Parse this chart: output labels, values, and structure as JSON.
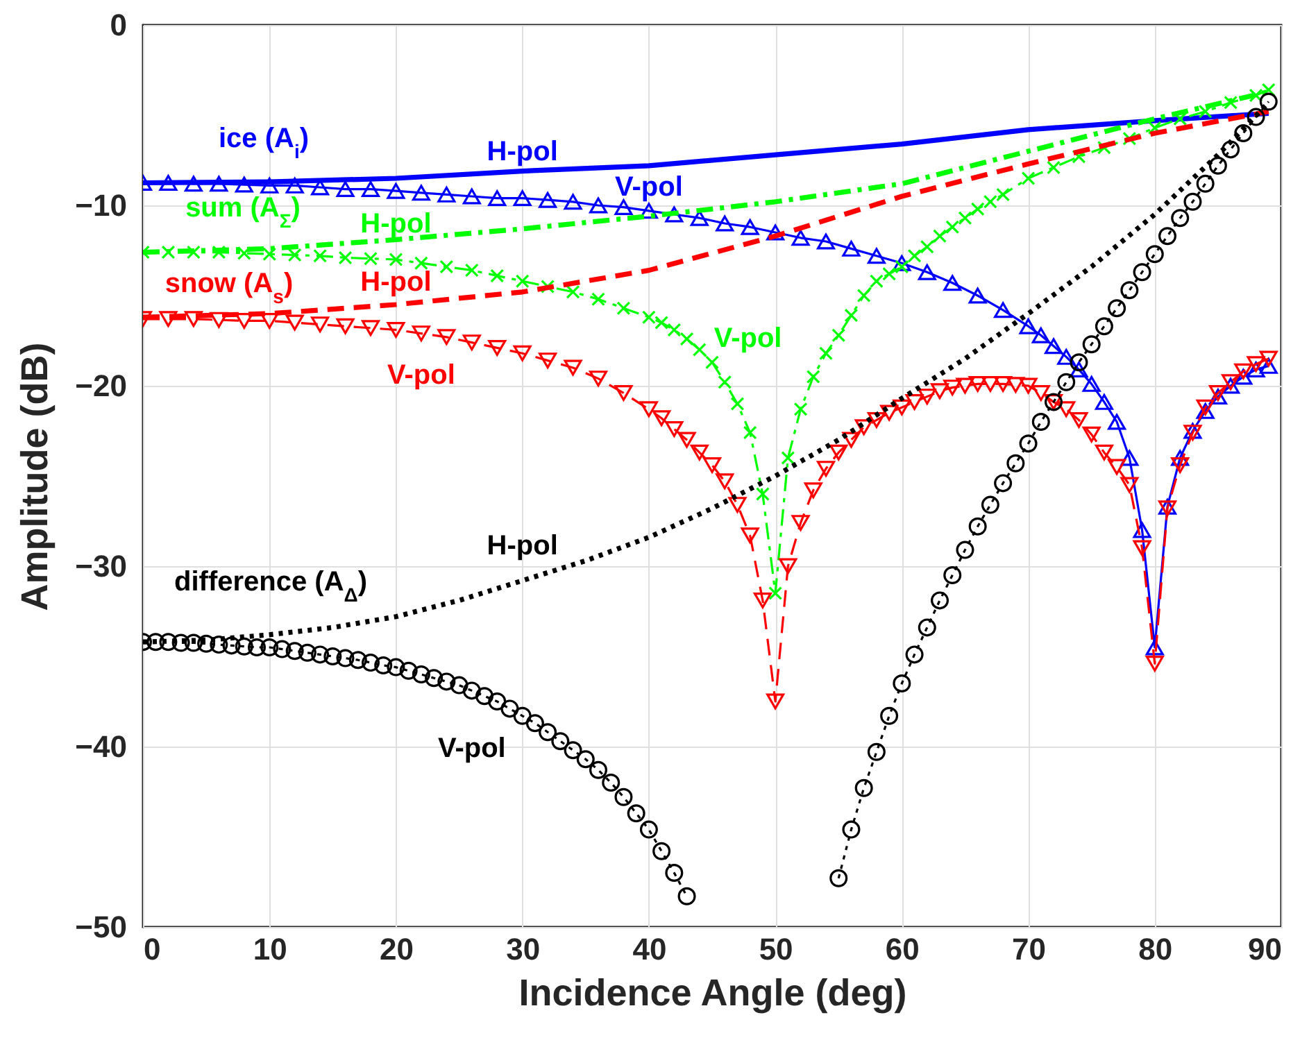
{
  "chart_data": {
    "type": "line",
    "xlabel": "Incidence Angle (deg)",
    "ylabel": "Amplitude (dB)",
    "xlim": [
      0,
      90
    ],
    "ylim": [
      -50,
      0
    ],
    "xticks": [
      0,
      10,
      20,
      30,
      40,
      50,
      60,
      70,
      80,
      90
    ],
    "yticks": [
      -50,
      -40,
      -30,
      -20,
      -10,
      0
    ],
    "grid": true,
    "series": [
      {
        "name": "H-pol",
        "color": "#0000ff",
        "marker": "none",
        "line_style": "solid",
        "x": [
          0,
          10,
          20,
          30,
          40,
          50,
          60,
          70,
          80,
          89
        ],
        "values": [
          -8.75,
          -8.7,
          -8.5,
          -8.1,
          -7.8,
          -7.2,
          -6.6,
          -5.8,
          -5.3,
          -4.9
        ]
      },
      {
        "name": "V-pol",
        "color": "#0000ff",
        "marker": "triangle",
        "line_style": "solid",
        "x": [
          0,
          2,
          4,
          6,
          8,
          10,
          12,
          14,
          16,
          18,
          20,
          22,
          24,
          26,
          28,
          30,
          32,
          34,
          36,
          38,
          40,
          42,
          44,
          46,
          48,
          50,
          52,
          54,
          56,
          58,
          60,
          62,
          64,
          66,
          68,
          70,
          71,
          72,
          73,
          74,
          75,
          76,
          77,
          78,
          79,
          80,
          81,
          82,
          83,
          84,
          85,
          86,
          87,
          88,
          89
        ],
        "values": [
          -8.75,
          -8.75,
          -8.8,
          -8.8,
          -8.85,
          -8.9,
          -8.9,
          -9.0,
          -9.1,
          -9.1,
          -9.2,
          -9.3,
          -9.4,
          -9.5,
          -9.6,
          -9.6,
          -9.7,
          -9.8,
          -10.0,
          -10.1,
          -10.3,
          -10.5,
          -10.7,
          -11.0,
          -11.2,
          -11.5,
          -11.8,
          -12.0,
          -12.4,
          -12.8,
          -13.2,
          -13.7,
          -14.3,
          -15.0,
          -15.8,
          -16.7,
          -17.2,
          -17.8,
          -18.4,
          -19.1,
          -19.9,
          -20.9,
          -22.0,
          -24.0,
          -28.0,
          -34.5,
          -26.7,
          -24.0,
          -22.5,
          -21.4,
          -20.6,
          -20.0,
          -19.5,
          -19.1,
          -18.9
        ]
      },
      {
        "name": "H-pol",
        "color": "#00ff00",
        "marker": "none",
        "line_style": "dashdot",
        "x": [
          0,
          10,
          20,
          30,
          40,
          50,
          60,
          70,
          80,
          89
        ],
        "values": [
          -12.6,
          -12.4,
          -11.9,
          -11.3,
          -10.6,
          -9.8,
          -8.8,
          -7.0,
          -5.2,
          -3.7
        ]
      },
      {
        "name": "V-pol",
        "color": "#00ff00",
        "marker": "cross",
        "line_style": "dashdot",
        "x": [
          0,
          2,
          4,
          6,
          8,
          10,
          12,
          14,
          16,
          18,
          20,
          22,
          24,
          26,
          28,
          30,
          32,
          34,
          36,
          38,
          40,
          41,
          42,
          43,
          44,
          45,
          46,
          47,
          48,
          49,
          50,
          51,
          52,
          53,
          54,
          55,
          56,
          57,
          58,
          59,
          60,
          61,
          62,
          63,
          64,
          65,
          66,
          67,
          68,
          70,
          72,
          74,
          76,
          78,
          80,
          82,
          84,
          86,
          88,
          89
        ],
        "values": [
          -12.6,
          -12.6,
          -12.6,
          -12.6,
          -12.65,
          -12.7,
          -12.75,
          -12.8,
          -12.9,
          -12.95,
          -13.0,
          -13.2,
          -13.4,
          -13.6,
          -13.9,
          -14.2,
          -14.5,
          -14.8,
          -15.2,
          -15.7,
          -16.2,
          -16.5,
          -16.9,
          -17.4,
          -18.0,
          -18.7,
          -19.8,
          -21.0,
          -22.6,
          -26.0,
          -31.5,
          -24.0,
          -21.3,
          -19.5,
          -18.2,
          -17.2,
          -16.1,
          -15.0,
          -14.2,
          -13.8,
          -13.4,
          -12.8,
          -12.3,
          -11.7,
          -11.2,
          -10.7,
          -10.2,
          -9.8,
          -9.4,
          -8.5,
          -7.9,
          -7.3,
          -6.8,
          -6.3,
          -5.7,
          -5.2,
          -4.8,
          -4.3,
          -3.9,
          -3.6
        ]
      },
      {
        "name": "H-pol",
        "color": "#ff0000",
        "marker": "none",
        "line_style": "dashed",
        "x": [
          0,
          10,
          20,
          30,
          40,
          50,
          60,
          70,
          80,
          89
        ],
        "values": [
          -16.2,
          -16.0,
          -15.5,
          -14.8,
          -13.6,
          -11.7,
          -9.5,
          -7.7,
          -6.0,
          -4.8
        ]
      },
      {
        "name": "V-pol",
        "color": "#ff0000",
        "marker": "triangle-down",
        "line_style": "dashed",
        "x": [
          0,
          2,
          4,
          6,
          8,
          10,
          12,
          14,
          16,
          18,
          20,
          22,
          24,
          26,
          28,
          30,
          32,
          34,
          36,
          38,
          40,
          41,
          42,
          43,
          44,
          45,
          46,
          47,
          48,
          49,
          50,
          51,
          52,
          53,
          54,
          55,
          56,
          57,
          58,
          59,
          60,
          61,
          62,
          63,
          64,
          65,
          66,
          67,
          68,
          69,
          70,
          71,
          72,
          73,
          74,
          75,
          76,
          77,
          78,
          79,
          80,
          81,
          82,
          83,
          84,
          85,
          86,
          87,
          88,
          89
        ],
        "values": [
          -16.3,
          -16.3,
          -16.3,
          -16.35,
          -16.4,
          -16.4,
          -16.5,
          -16.6,
          -16.7,
          -16.8,
          -16.9,
          -17.1,
          -17.3,
          -17.6,
          -17.9,
          -18.2,
          -18.6,
          -19.0,
          -19.6,
          -20.4,
          -21.3,
          -21.8,
          -22.4,
          -23.0,
          -23.7,
          -24.4,
          -25.3,
          -26.6,
          -28.3,
          -31.9,
          -37.5,
          -30.0,
          -27.6,
          -25.8,
          -24.6,
          -23.7,
          -23.0,
          -22.3,
          -21.9,
          -21.5,
          -21.2,
          -20.9,
          -20.6,
          -20.3,
          -20.1,
          -20.0,
          -19.9,
          -19.9,
          -19.9,
          -19.95,
          -20.0,
          -20.4,
          -20.9,
          -21.3,
          -21.9,
          -22.7,
          -23.7,
          -24.5,
          -25.5,
          -29.0,
          -35.4,
          -26.8,
          -24.4,
          -22.6,
          -21.2,
          -20.4,
          -19.8,
          -19.2,
          -18.8,
          -18.5
        ]
      },
      {
        "name": "H-pol",
        "color": "#000000",
        "marker": "none",
        "line_style": "dotted",
        "x": [
          0,
          5,
          10,
          15,
          20,
          25,
          30,
          35,
          40,
          45,
          50,
          55,
          60,
          65,
          70,
          75,
          80,
          85,
          89
        ],
        "values": [
          -34.2,
          -34.1,
          -33.8,
          -33.4,
          -32.8,
          -31.9,
          -30.8,
          -29.7,
          -28.4,
          -26.8,
          -25.0,
          -23.0,
          -20.7,
          -18.5,
          -16.0,
          -13.4,
          -10.5,
          -7.2,
          -4.3
        ]
      },
      {
        "name": "V-pol",
        "color": "#000000",
        "marker": "circle",
        "line_style": "dotted",
        "x": [
          0,
          1,
          2,
          3,
          4,
          5,
          6,
          7,
          8,
          9,
          10,
          11,
          12,
          13,
          14,
          15,
          16,
          17,
          18,
          19,
          20,
          21,
          22,
          23,
          24,
          25,
          26,
          27,
          28,
          29,
          30,
          31,
          32,
          33,
          34,
          35,
          36,
          37,
          38,
          39,
          40,
          41,
          42,
          43,
          44,
          54,
          55,
          56,
          57,
          58,
          59,
          60,
          61,
          62,
          63,
          64,
          65,
          66,
          67,
          68,
          69,
          70,
          71,
          72,
          73,
          74,
          75,
          76,
          77,
          78,
          79,
          80,
          81,
          82,
          83,
          84,
          85,
          86,
          87,
          88,
          89
        ],
        "values": [
          -34.2,
          -34.2,
          -34.2,
          -34.25,
          -34.25,
          -34.3,
          -34.35,
          -34.4,
          -34.45,
          -34.5,
          -34.5,
          -34.6,
          -34.7,
          -34.8,
          -34.9,
          -35.0,
          -35.1,
          -35.2,
          -35.35,
          -35.5,
          -35.6,
          -35.8,
          -36.0,
          -36.2,
          -36.4,
          -36.6,
          -36.9,
          -37.2,
          -37.5,
          -37.9,
          -38.3,
          -38.7,
          -39.2,
          -39.7,
          -40.2,
          -40.7,
          -41.3,
          -42.0,
          -42.8,
          -43.7,
          -44.6,
          -45.8,
          -47.0,
          -48.3,
          null,
          null,
          -47.3,
          -44.6,
          -42.3,
          -40.3,
          -38.3,
          -36.5,
          -34.9,
          -33.4,
          -31.9,
          -30.5,
          -29.1,
          -27.8,
          -26.6,
          -25.4,
          -24.3,
          -23.2,
          -22.0,
          -20.9,
          -19.8,
          -18.7,
          -17.7,
          -16.7,
          -15.7,
          -14.7,
          -13.7,
          -12.7,
          -11.7,
          -10.7,
          -9.8,
          -8.8,
          -7.8,
          -6.9,
          -6.0,
          -5.1,
          -4.25
        ]
      }
    ],
    "annotations": [
      "ice (A$_{i}$)",
      "sum (A$_{Σ}$)",
      "snow (A$_{s}$)",
      "difference (A$_{Δ}$)"
    ]
  }
}
